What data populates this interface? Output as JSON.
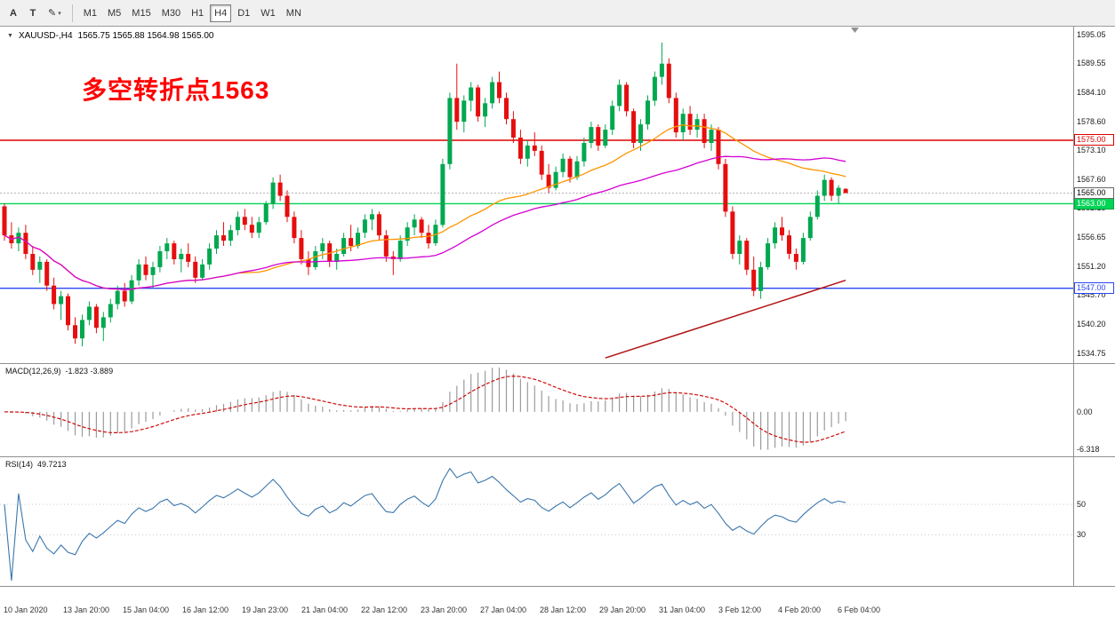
{
  "toolbar": {
    "tool_buttons": [
      {
        "name": "cursor-tool",
        "label": "A",
        "dropdown": ""
      },
      {
        "name": "text-tool",
        "label": "T",
        "dropdown": ""
      },
      {
        "name": "draw-tool",
        "label": "✎",
        "dropdown": "▾"
      }
    ],
    "timeframes": [
      "M1",
      "M5",
      "M15",
      "M30",
      "H1",
      "H4",
      "D1",
      "W1",
      "MN"
    ],
    "active_timeframe": "H4"
  },
  "chart": {
    "collapse_icon": "▼",
    "symbol_label": "XAUUSD-,H4",
    "ohlc_label": "1565.75 1565.88 1564.98 1565.00",
    "annotation": "多空转折点1563",
    "annotation_color": "#ff0000",
    "price_axis_labels": [
      "1595.05",
      "1589.55",
      "1584.10",
      "1578.60",
      "1573.10",
      "1567.60",
      "1562.15",
      "1556.65",
      "1551.20",
      "1545.70",
      "1540.20",
      "1534.75"
    ],
    "current_price": {
      "value": 1565.0,
      "label": "1565.00"
    },
    "hlines": [
      {
        "price": 1575.0,
        "label": "1575.00",
        "color": "#dd0000",
        "tag": {
          "bg": "#ffffff",
          "fg": "#dd0000",
          "bd": "#dd0000"
        }
      },
      {
        "price": 1563.0,
        "label": "1563.00",
        "color": "#00d455",
        "tag": {
          "bg": "#00d455",
          "fg": "#ffffff",
          "bd": "#00a843"
        }
      },
      {
        "price": 1547.0,
        "label": "1547.00",
        "color": "#2b47f0",
        "tag": {
          "bg": "#ffffff",
          "fg": "#2b47f0",
          "bd": "#2b47f0"
        }
      }
    ],
    "trendline": {
      "from_index": 85,
      "from_price": 1533.8,
      "to_index": 119,
      "to_price": 1548.5,
      "color": "#b01212"
    }
  },
  "chart_data": {
    "type": "candlestick",
    "symbol": "XAUUSD",
    "timeframe": "H4",
    "y_range": [
      1533.0,
      1596.5
    ],
    "colors": {
      "up": "#00a84f",
      "down": "#e60e0e"
    },
    "x_labels": [
      "10 Jan 2020",
      "13 Jan 20:00",
      "15 Jan 04:00",
      "16 Jan 12:00",
      "19 Jan 23:00",
      "21 Jan 04:00",
      "22 Jan 12:00",
      "23 Jan 20:00",
      "27 Jan 04:00",
      "28 Jan 12:00",
      "29 Jan 20:00",
      "31 Jan 04:00",
      "3 Feb 12:00",
      "4 Feb 20:00",
      "6 Feb 04:00"
    ],
    "moving_averages": [
      {
        "name": "ma-fast-orange",
        "period": 34,
        "color": "#ff9500"
      },
      {
        "name": "ma-slow-magenta",
        "period": 55,
        "color": "#d400d4"
      }
    ],
    "candles": [
      [
        1562.5,
        1563,
        1556,
        1557
      ],
      [
        1557,
        1559.5,
        1554.5,
        1555.5
      ],
      [
        1555.5,
        1558.5,
        1554,
        1557.5
      ],
      [
        1557.5,
        1559,
        1552.5,
        1553.5
      ],
      [
        1553.5,
        1555,
        1549.5,
        1550.5
      ],
      [
        1550.5,
        1553,
        1548,
        1552
      ],
      [
        1552,
        1552.5,
        1546.5,
        1547.5
      ],
      [
        1547.5,
        1549,
        1543,
        1544
      ],
      [
        1544,
        1546.5,
        1541,
        1545.5
      ],
      [
        1545.5,
        1546,
        1539,
        1540
      ],
      [
        1540,
        1541.5,
        1536.5,
        1537.5
      ],
      [
        1537.5,
        1542,
        1536,
        1541
      ],
      [
        1541,
        1544.5,
        1540,
        1543.5
      ],
      [
        1543.5,
        1544,
        1538.5,
        1539.5
      ],
      [
        1539.5,
        1542.5,
        1537,
        1541.5
      ],
      [
        1541.5,
        1545,
        1540.5,
        1544
      ],
      [
        1544,
        1547.5,
        1543,
        1546.5
      ],
      [
        1546.5,
        1548,
        1543.5,
        1544.5
      ],
      [
        1544.5,
        1549.5,
        1544,
        1548.5
      ],
      [
        1548.5,
        1552.5,
        1547.5,
        1551.5
      ],
      [
        1551.5,
        1553,
        1548.5,
        1549.5
      ],
      [
        1549.5,
        1552,
        1547,
        1551
      ],
      [
        1551,
        1555,
        1550,
        1554
      ],
      [
        1554,
        1556.5,
        1552.5,
        1555.5
      ],
      [
        1555.5,
        1556,
        1551.5,
        1552.5
      ],
      [
        1552.5,
        1554.5,
        1550,
        1553.5
      ],
      [
        1553.5,
        1555.5,
        1551,
        1552
      ],
      [
        1552,
        1553,
        1548,
        1549
      ],
      [
        1549,
        1552.5,
        1548.5,
        1551.5
      ],
      [
        1551.5,
        1555.5,
        1550.5,
        1554.5
      ],
      [
        1554.5,
        1558,
        1553.5,
        1557
      ],
      [
        1557,
        1559.5,
        1555,
        1556
      ],
      [
        1556,
        1559,
        1555,
        1558
      ],
      [
        1558,
        1561.5,
        1557,
        1560.5
      ],
      [
        1560.5,
        1562,
        1558,
        1559
      ],
      [
        1559,
        1560.5,
        1556.5,
        1557.5
      ],
      [
        1557.5,
        1560.5,
        1556.5,
        1559.5
      ],
      [
        1559.5,
        1563.5,
        1559,
        1563
      ],
      [
        1563,
        1568,
        1562,
        1567
      ],
      [
        1567,
        1568.5,
        1563.5,
        1564.5
      ],
      [
        1564.5,
        1565.5,
        1559.5,
        1560.5
      ],
      [
        1560.5,
        1561.5,
        1555.5,
        1556.5
      ],
      [
        1556.5,
        1558,
        1551.5,
        1552.5
      ],
      [
        1552.5,
        1554,
        1549.5,
        1551
      ],
      [
        1551,
        1555,
        1550.5,
        1554
      ],
      [
        1554,
        1556.5,
        1552.5,
        1555.5
      ],
      [
        1555.5,
        1556,
        1551,
        1552
      ],
      [
        1552,
        1554.5,
        1550.5,
        1553.5
      ],
      [
        1553.5,
        1557.5,
        1553,
        1556.5
      ],
      [
        1556.5,
        1559,
        1554,
        1555
      ],
      [
        1555,
        1558.5,
        1554.5,
        1557.5
      ],
      [
        1557.5,
        1561,
        1556.5,
        1560
      ],
      [
        1560,
        1562,
        1558,
        1561
      ],
      [
        1561,
        1561.5,
        1556,
        1557
      ],
      [
        1557,
        1558,
        1552,
        1553
      ],
      [
        1553,
        1554,
        1549.5,
        1552.5
      ],
      [
        1552.5,
        1557,
        1552,
        1556
      ],
      [
        1556,
        1559.5,
        1555,
        1558.5
      ],
      [
        1558.5,
        1561,
        1557,
        1560
      ],
      [
        1560,
        1560.5,
        1556.5,
        1557.5
      ],
      [
        1557.5,
        1559,
        1554.5,
        1555.5
      ],
      [
        1555.5,
        1560,
        1555,
        1559
      ],
      [
        1559,
        1571.5,
        1558.5,
        1570.5
      ],
      [
        1570.5,
        1584,
        1569.5,
        1583
      ],
      [
        1583,
        1589.5,
        1577,
        1578.5
      ],
      [
        1578.5,
        1583.5,
        1576.5,
        1582.5
      ],
      [
        1582.5,
        1586,
        1580.5,
        1585
      ],
      [
        1585,
        1585.5,
        1578.5,
        1579.5
      ],
      [
        1579.5,
        1583,
        1577.5,
        1582
      ],
      [
        1582,
        1587,
        1581,
        1586
      ],
      [
        1586,
        1588,
        1582,
        1583
      ],
      [
        1583,
        1584,
        1578,
        1579
      ],
      [
        1579,
        1580.5,
        1574.5,
        1575.5
      ],
      [
        1575.5,
        1577,
        1570.5,
        1571.5
      ],
      [
        1571.5,
        1575,
        1570,
        1574
      ],
      [
        1574,
        1576.5,
        1572,
        1573
      ],
      [
        1573,
        1574,
        1567.5,
        1568.5
      ],
      [
        1568.5,
        1570.5,
        1565,
        1566
      ],
      [
        1566,
        1570,
        1565.5,
        1569
      ],
      [
        1569,
        1572.5,
        1568,
        1571.5
      ],
      [
        1571.5,
        1572,
        1567,
        1568
      ],
      [
        1568,
        1572,
        1567.5,
        1571
      ],
      [
        1571,
        1575.5,
        1570,
        1574.5
      ],
      [
        1574.5,
        1578.5,
        1573.5,
        1577.5
      ],
      [
        1577.5,
        1578,
        1573,
        1574
      ],
      [
        1574,
        1578,
        1573.5,
        1577
      ],
      [
        1577,
        1582.5,
        1576,
        1581.5
      ],
      [
        1581.5,
        1586.5,
        1580.5,
        1585.5
      ],
      [
        1585.5,
        1586,
        1579.5,
        1580.5
      ],
      [
        1580.5,
        1581,
        1573.5,
        1574.5
      ],
      [
        1574.5,
        1579,
        1573,
        1578
      ],
      [
        1578,
        1583.5,
        1577,
        1582.5
      ],
      [
        1582.5,
        1588,
        1581.5,
        1587
      ],
      [
        1587,
        1593.5,
        1585.5,
        1589.5
      ],
      [
        1589.5,
        1590.5,
        1582,
        1583
      ],
      [
        1583,
        1584,
        1575.5,
        1576.5
      ],
      [
        1576.5,
        1581,
        1575,
        1580
      ],
      [
        1580,
        1581.5,
        1576,
        1577
      ],
      [
        1577,
        1580,
        1575.5,
        1579
      ],
      [
        1579,
        1580,
        1573.5,
        1574.5
      ],
      [
        1574.5,
        1578,
        1573,
        1577
      ],
      [
        1577,
        1577.5,
        1569.5,
        1570.5
      ],
      [
        1570.5,
        1571.5,
        1560.5,
        1561.5
      ],
      [
        1561.5,
        1562.5,
        1552.5,
        1553.5
      ],
      [
        1553.5,
        1557,
        1551.5,
        1556
      ],
      [
        1556,
        1556.5,
        1549.5,
        1550.5
      ],
      [
        1550.5,
        1553,
        1545.5,
        1546.5
      ],
      [
        1546.5,
        1552,
        1545,
        1551
      ],
      [
        1551,
        1556.5,
        1550.5,
        1555.5
      ],
      [
        1555.5,
        1559.5,
        1554.5,
        1558.5
      ],
      [
        1558.5,
        1560.5,
        1556,
        1557
      ],
      [
        1557,
        1558,
        1552.5,
        1553.5
      ],
      [
        1553.5,
        1554.5,
        1550.5,
        1552
      ],
      [
        1552,
        1557.5,
        1551.5,
        1556.5
      ],
      [
        1556.5,
        1561.5,
        1556,
        1560.5
      ],
      [
        1560.5,
        1565.5,
        1560,
        1564.5
      ],
      [
        1564.5,
        1568.5,
        1563.5,
        1567.5
      ],
      [
        1567.5,
        1568,
        1563.5,
        1564.5
      ],
      [
        1564.5,
        1566.5,
        1563,
        1566
      ],
      [
        1565.8,
        1565.9,
        1565,
        1565
      ]
    ]
  },
  "macd": {
    "name": "MACD(12,26,9)",
    "values": "-1.823 -3.889",
    "zero_label": "0.00",
    "min_label": "-6.318",
    "histogram_color": "#9b9b9b",
    "signal_color": "#cf0a0a"
  },
  "rsi": {
    "name": "RSI(14)",
    "value": "49.7213",
    "line_color": "#3a76ad",
    "levels": [
      {
        "value": 50,
        "label": "50"
      },
      {
        "value": 30,
        "label": "30"
      }
    ]
  }
}
